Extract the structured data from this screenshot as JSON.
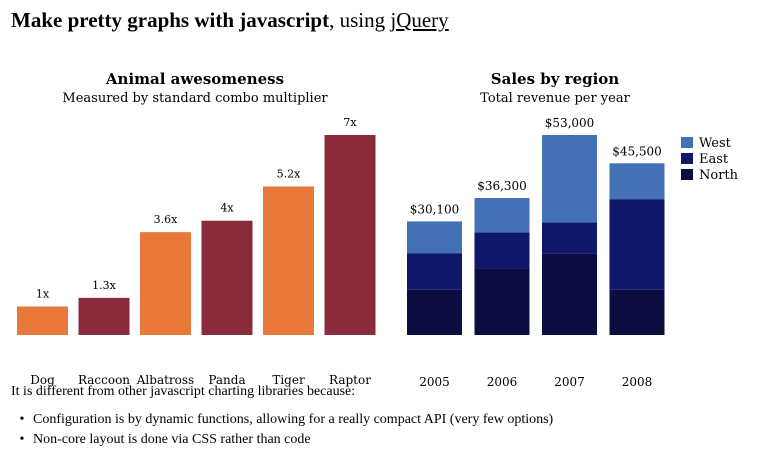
{
  "header": {
    "title_bold": "Make pretty graphs with javascript",
    "title_sep": ", using ",
    "link_text": "jQuery"
  },
  "chart_data": [
    {
      "type": "bar",
      "title": "Animal awesomeness",
      "subtitle": "Measured by standard combo multiplier",
      "categories": [
        "Dog",
        "Raccoon",
        "Albatross",
        "Panda",
        "Tiger",
        "Raptor"
      ],
      "values": [
        1,
        1.3,
        3.6,
        4,
        5.2,
        7
      ],
      "value_labels": [
        "1x",
        "1.3x",
        "3.6x",
        "4x",
        "5.2x",
        "7x"
      ],
      "colors": [
        "#e8793b",
        "#8b2a3b",
        "#e8793b",
        "#8b2a3b",
        "#e8793b",
        "#8b2a3b"
      ],
      "ylim": [
        0,
        7
      ]
    },
    {
      "type": "bar",
      "stacked": true,
      "title": "Sales by region",
      "subtitle": "Total revenue per year",
      "categories": [
        "2005",
        "2006",
        "2007",
        "2008"
      ],
      "totals": [
        "$30,100",
        "$36,300",
        "$53,000",
        "$45,500"
      ],
      "series": [
        {
          "name": "North",
          "color": "#0b0c3f",
          "values": [
            12000,
            17500,
            21500,
            12000
          ]
        },
        {
          "name": "East",
          "color": "#101669",
          "values": [
            9600,
            9700,
            8300,
            24000
          ]
        },
        {
          "name": "West",
          "color": "#4471b5",
          "values": [
            8500,
            9100,
            23200,
            9500
          ]
        }
      ],
      "legend": [
        "West",
        "East",
        "North"
      ],
      "legend_position": "right",
      "ylim": [
        0,
        53000
      ]
    }
  ],
  "footer": {
    "intro": "It is different from other javascript charting libraries because:",
    "bullet": "•",
    "reasons": [
      "Configuration is by dynamic functions, allowing for a really compact API (very few options)",
      "Non-core layout is done via CSS rather than code"
    ]
  }
}
